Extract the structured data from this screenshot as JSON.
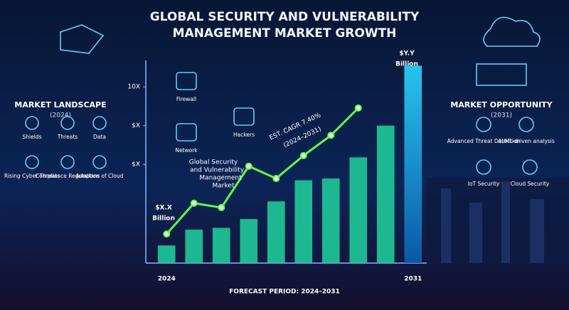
{
  "title": [
    "GLOBAL SECURITY AND VULNERABILITY",
    "MANAGEMENT MARKET GROWTH"
  ],
  "left_panel": {
    "heading": "MARKET LANDSCAPE",
    "period": "(2024)",
    "items": [
      "Shields",
      "Threats",
      "Data",
      "Rising Cyber Threats",
      "Compliance Regulations",
      "Adoption of Cloud"
    ]
  },
  "right_panel": {
    "heading": "MARKET OPPORTUNITY",
    "period": "(2031)",
    "items": [
      "Advanced Threat Detection",
      "AI/ML-driven analysis",
      "IoT Security",
      "Cloud Security"
    ]
  },
  "icons": [
    "Firewall",
    "Network",
    "Hackers"
  ],
  "chart_data": {
    "type": "bar",
    "categories": [
      "2024",
      null,
      null,
      null,
      null,
      null,
      null,
      null,
      null,
      "2031"
    ],
    "series": [
      {
        "color": "#1fc99a",
        "values": [
          1.0,
          1.9,
          2.0,
          2.5,
          3.5,
          4.7,
          4.8,
          6.0,
          7.8,
          11.2
        ]
      },
      {
        "type": "line",
        "color": "#5cff4a",
        "values": [
          1.65,
          3.4,
          3.15,
          5.5,
          4.8,
          6.1,
          7.25,
          8.8,
          null,
          null
        ]
      }
    ],
    "ylim": [
      0,
      11.5
    ],
    "yticks": [
      {
        "value": 5.6,
        "label": "$X"
      },
      {
        "value": 7.8,
        "label": "$X"
      },
      {
        "value": 10,
        "label": "10X"
      }
    ],
    "annotations": [
      "$X.X",
      "Billion",
      "$Y.Y",
      "Billion",
      "EST. CAGR 7.40%",
      "(2024–2031)",
      "Global Security",
      "and Vulnerability",
      "Management",
      "Market"
    ],
    "footer": "FORECAST PERIOD: 2024–2031"
  }
}
